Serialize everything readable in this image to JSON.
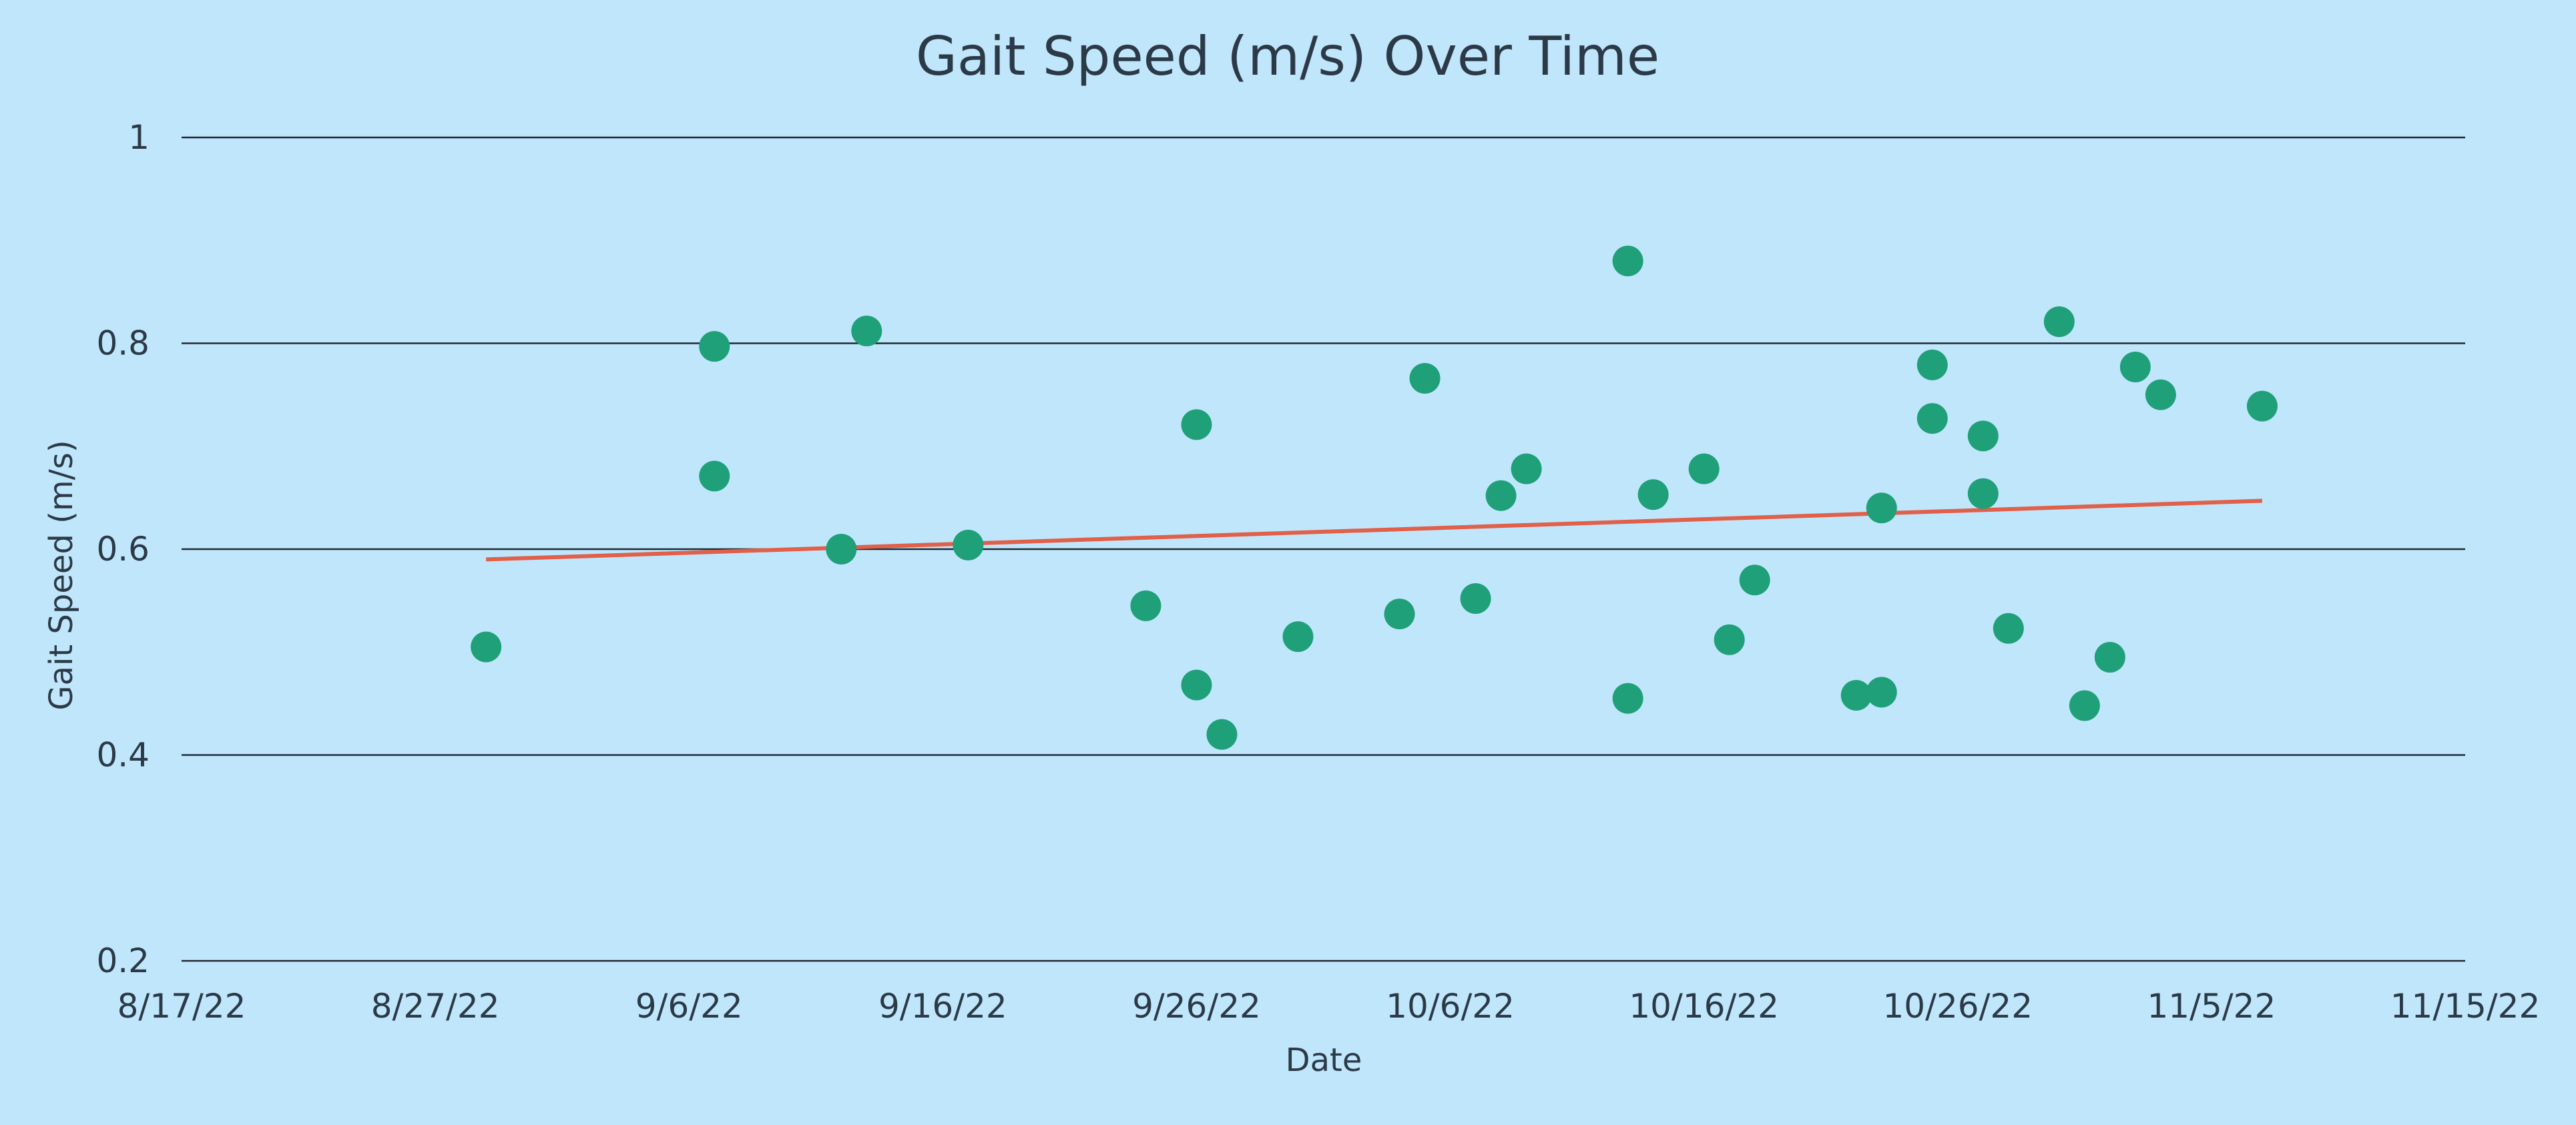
{
  "chart_data": {
    "type": "scatter",
    "title": "Gait Speed (m/s) Over Time",
    "xlabel": "Date",
    "ylabel": "Gait Speed (m/s)",
    "x_ticks": [
      "8/17/22",
      "8/27/22",
      "9/6/22",
      "9/16/22",
      "9/26/22",
      "10/6/22",
      "10/16/22",
      "10/26/22",
      "11/5/22",
      "11/15/22"
    ],
    "y_ticks": [
      "0.2",
      "0.4",
      "0.6",
      "0.8",
      "1"
    ],
    "xlim": [
      "2022-08-17",
      "2022-11-15"
    ],
    "ylim": [
      0.2,
      1.0
    ],
    "grid": "horizontal",
    "series": [
      {
        "color": "#1fa078",
        "points": [
          {
            "x": "2022-08-29",
            "y": 0.505
          },
          {
            "x": "2022-09-07",
            "y": 0.797
          },
          {
            "x": "2022-09-07",
            "y": 0.671
          },
          {
            "x": "2022-09-12",
            "y": 0.6
          },
          {
            "x": "2022-09-13",
            "y": 0.812
          },
          {
            "x": "2022-09-17",
            "y": 0.604
          },
          {
            "x": "2022-09-24",
            "y": 0.545
          },
          {
            "x": "2022-09-26",
            "y": 0.721
          },
          {
            "x": "2022-09-26",
            "y": 0.468
          },
          {
            "x": "2022-09-27",
            "y": 0.42
          },
          {
            "x": "2022-09-30",
            "y": 0.515
          },
          {
            "x": "2022-10-04",
            "y": 0.537
          },
          {
            "x": "2022-10-05",
            "y": 0.766
          },
          {
            "x": "2022-10-07",
            "y": 0.552
          },
          {
            "x": "2022-10-08",
            "y": 0.652
          },
          {
            "x": "2022-10-09",
            "y": 0.678
          },
          {
            "x": "2022-10-13",
            "y": 0.88
          },
          {
            "x": "2022-10-13",
            "y": 0.455
          },
          {
            "x": "2022-10-14",
            "y": 0.653
          },
          {
            "x": "2022-10-16",
            "y": 0.678
          },
          {
            "x": "2022-10-17",
            "y": 0.512
          },
          {
            "x": "2022-10-18",
            "y": 0.57
          },
          {
            "x": "2022-10-22",
            "y": 0.458
          },
          {
            "x": "2022-10-23",
            "y": 0.64
          },
          {
            "x": "2022-10-23",
            "y": 0.461
          },
          {
            "x": "2022-10-25",
            "y": 0.779
          },
          {
            "x": "2022-10-25",
            "y": 0.727
          },
          {
            "x": "2022-10-27",
            "y": 0.71
          },
          {
            "x": "2022-10-27",
            "y": 0.654
          },
          {
            "x": "2022-10-28",
            "y": 0.523
          },
          {
            "x": "2022-10-30",
            "y": 0.821
          },
          {
            "x": "2022-10-31",
            "y": 0.448
          },
          {
            "x": "2022-11-01",
            "y": 0.495
          },
          {
            "x": "2022-11-02",
            "y": 0.777
          },
          {
            "x": "2022-11-03",
            "y": 0.75
          },
          {
            "x": "2022-11-07",
            "y": 0.739
          }
        ]
      }
    ],
    "trendline": {
      "type": "linear",
      "color": "#e1604a",
      "start": {
        "x": "2022-08-29",
        "y": 0.59
      },
      "end": {
        "x": "2022-11-07",
        "y": 0.647
      }
    }
  }
}
